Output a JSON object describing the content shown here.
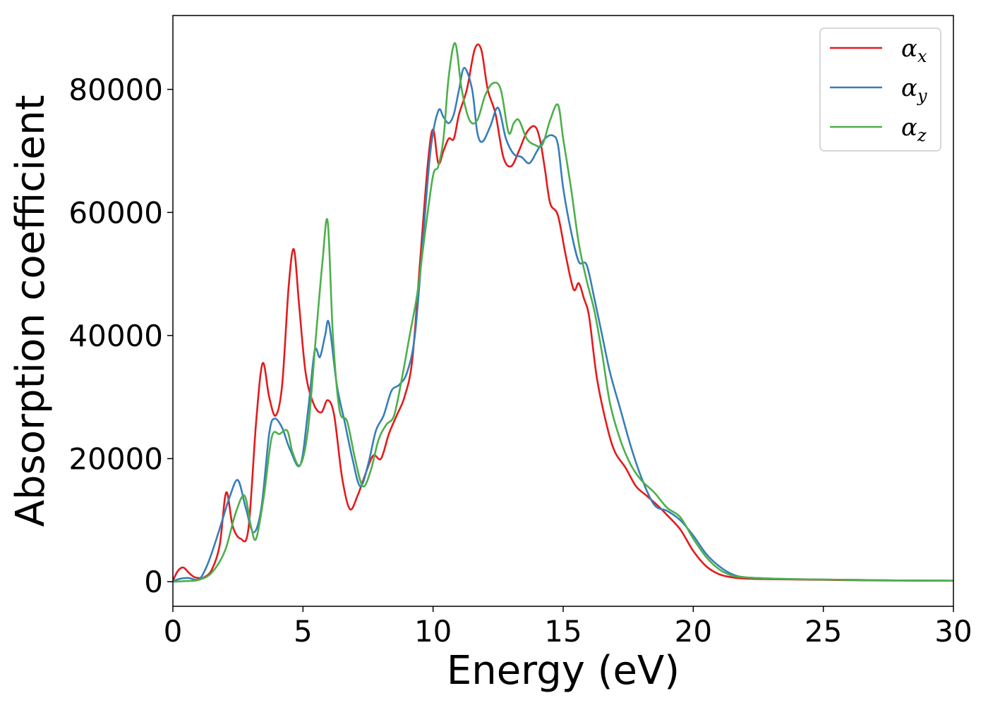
{
  "chart_data": {
    "type": "line",
    "title": "",
    "xlabel": "Energy (eV)",
    "ylabel": "Absorption coefficient",
    "xlim": [
      0,
      30
    ],
    "ylim": [
      -4000,
      92000
    ],
    "xticks": [
      "0",
      "5",
      "10",
      "15",
      "20",
      "25",
      "30"
    ],
    "yticks": [
      "0",
      "20000",
      "40000",
      "60000",
      "80000"
    ],
    "grid": false,
    "legend_position": "top-right",
    "series": [
      {
        "name": "α",
        "subscript": "x",
        "color": "#e41a1c",
        "x": [
          0,
          0.2,
          0.4,
          0.6,
          0.8,
          1.0,
          1.2,
          1.5,
          1.8,
          2.05,
          2.3,
          2.6,
          2.9,
          3.2,
          3.45,
          3.7,
          3.95,
          4.2,
          4.45,
          4.65,
          4.85,
          5.1,
          5.4,
          5.7,
          5.95,
          6.2,
          6.5,
          6.8,
          7.1,
          7.4,
          7.7,
          8.0,
          8.3,
          8.6,
          8.9,
          9.2,
          9.5,
          9.8,
          10.0,
          10.2,
          10.4,
          10.6,
          10.8,
          11.0,
          11.3,
          11.6,
          11.85,
          12.1,
          12.4,
          12.7,
          13.0,
          13.3,
          13.6,
          13.9,
          14.1,
          14.3,
          14.5,
          14.8,
          15.1,
          15.4,
          15.6,
          15.8,
          16.0,
          16.3,
          16.7,
          17.0,
          17.4,
          17.8,
          18.2,
          18.6,
          19.0,
          19.5,
          20.0,
          20.5,
          21.0,
          21.5,
          22,
          23,
          24,
          25,
          26,
          27,
          28,
          29,
          30
        ],
        "values": [
          200,
          1800,
          2300,
          1500,
          800,
          600,
          700,
          2000,
          6000,
          14500,
          9000,
          7000,
          8500,
          26000,
          35500,
          30000,
          27000,
          32000,
          48000,
          54000,
          45000,
          34000,
          29000,
          27500,
          29500,
          27000,
          17000,
          11800,
          14000,
          17500,
          20500,
          20000,
          24000,
          27000,
          30000,
          36000,
          52000,
          68000,
          73500,
          68000,
          70000,
          72000,
          72000,
          76000,
          80000,
          86500,
          86500,
          80000,
          76000,
          69000,
          67500,
          70000,
          73000,
          74000,
          72000,
          67000,
          61500,
          59500,
          53000,
          47500,
          48500,
          46000,
          43000,
          33000,
          25000,
          21000,
          18500,
          15500,
          14000,
          12500,
          10800,
          8500,
          5000,
          2500,
          1200,
          700,
          500,
          400,
          350,
          300,
          250,
          200,
          180,
          160,
          150
        ]
      },
      {
        "name": "α",
        "subscript": "y",
        "color": "#377eb8",
        "x": [
          0,
          0.3,
          0.6,
          1.0,
          1.3,
          1.6,
          1.9,
          2.2,
          2.5,
          2.8,
          3.1,
          3.4,
          3.7,
          3.9,
          4.2,
          4.5,
          4.9,
          5.2,
          5.45,
          5.65,
          5.85,
          6.0,
          6.3,
          6.6,
          6.9,
          7.2,
          7.5,
          7.8,
          8.1,
          8.4,
          8.7,
          9.0,
          9.3,
          9.6,
          9.9,
          10.2,
          10.4,
          10.6,
          10.8,
          11.0,
          11.2,
          11.5,
          11.7,
          11.9,
          12.2,
          12.5,
          12.8,
          13.1,
          13.4,
          13.7,
          14.0,
          14.3,
          14.6,
          14.8,
          15.0,
          15.3,
          15.6,
          15.9,
          16.2,
          16.5,
          16.8,
          17.2,
          17.6,
          18.0,
          18.5,
          19.0,
          19.5,
          20.0,
          20.5,
          21.0,
          21.5,
          22,
          23,
          24,
          25,
          26,
          27,
          28,
          29,
          30
        ],
        "values": [
          100,
          500,
          600,
          400,
          2500,
          6000,
          10000,
          14000,
          16500,
          12000,
          8000,
          12000,
          24000,
          26500,
          25000,
          21500,
          19000,
          28000,
          37500,
          36500,
          40000,
          42000,
          32000,
          26000,
          20000,
          15500,
          19000,
          24500,
          27000,
          31000,
          32000,
          34000,
          40000,
          55000,
          70000,
          76500,
          75500,
          74500,
          76000,
          80000,
          83500,
          80000,
          73000,
          71500,
          74000,
          77000,
          72000,
          69500,
          69000,
          68000,
          70000,
          72000,
          72500,
          71000,
          64000,
          57000,
          52000,
          51500,
          46000,
          40000,
          34000,
          28000,
          22000,
          17000,
          12500,
          11500,
          10000,
          7500,
          4500,
          2500,
          1200,
          700,
          500,
          400,
          350,
          300,
          250,
          200,
          180,
          160
        ]
      },
      {
        "name": "α",
        "subscript": "z",
        "color": "#4daf4a",
        "x": [
          0,
          0.5,
          1.0,
          1.5,
          2.0,
          2.4,
          2.75,
          3.0,
          3.2,
          3.5,
          3.8,
          4.1,
          4.4,
          4.6,
          4.9,
          5.2,
          5.5,
          5.75,
          5.95,
          6.15,
          6.4,
          6.7,
          7.0,
          7.3,
          7.6,
          7.9,
          8.2,
          8.5,
          8.8,
          9.1,
          9.4,
          9.7,
          10.0,
          10.2,
          10.4,
          10.6,
          10.85,
          11.1,
          11.4,
          11.7,
          12.0,
          12.3,
          12.6,
          12.9,
          13.1,
          13.3,
          13.6,
          13.9,
          14.2,
          14.5,
          14.8,
          15.0,
          15.3,
          15.6,
          15.9,
          16.2,
          16.5,
          16.8,
          17.2,
          17.6,
          18.0,
          18.5,
          19.0,
          19.5,
          20.0,
          20.5,
          21.0,
          21.5,
          22,
          23,
          24,
          25,
          26,
          27,
          28,
          29,
          30
        ],
        "values": [
          0,
          100,
          300,
          1500,
          5000,
          11000,
          14000,
          9000,
          7000,
          14000,
          23500,
          24000,
          24500,
          21000,
          19000,
          25000,
          40000,
          52000,
          58500,
          40000,
          28000,
          26000,
          20000,
          15500,
          18000,
          23000,
          25500,
          27000,
          33000,
          40000,
          47000,
          57000,
          66000,
          67500,
          72000,
          82000,
          87500,
          80000,
          75000,
          75000,
          79000,
          81000,
          80000,
          73000,
          74500,
          75000,
          72000,
          71000,
          71000,
          75000,
          77500,
          72000,
          64000,
          55000,
          49000,
          44000,
          37000,
          29000,
          23000,
          19000,
          16500,
          14500,
          12000,
          10500,
          7000,
          4000,
          2000,
          1000,
          700,
          500,
          400,
          350,
          300,
          250,
          200,
          180,
          160
        ]
      }
    ]
  }
}
